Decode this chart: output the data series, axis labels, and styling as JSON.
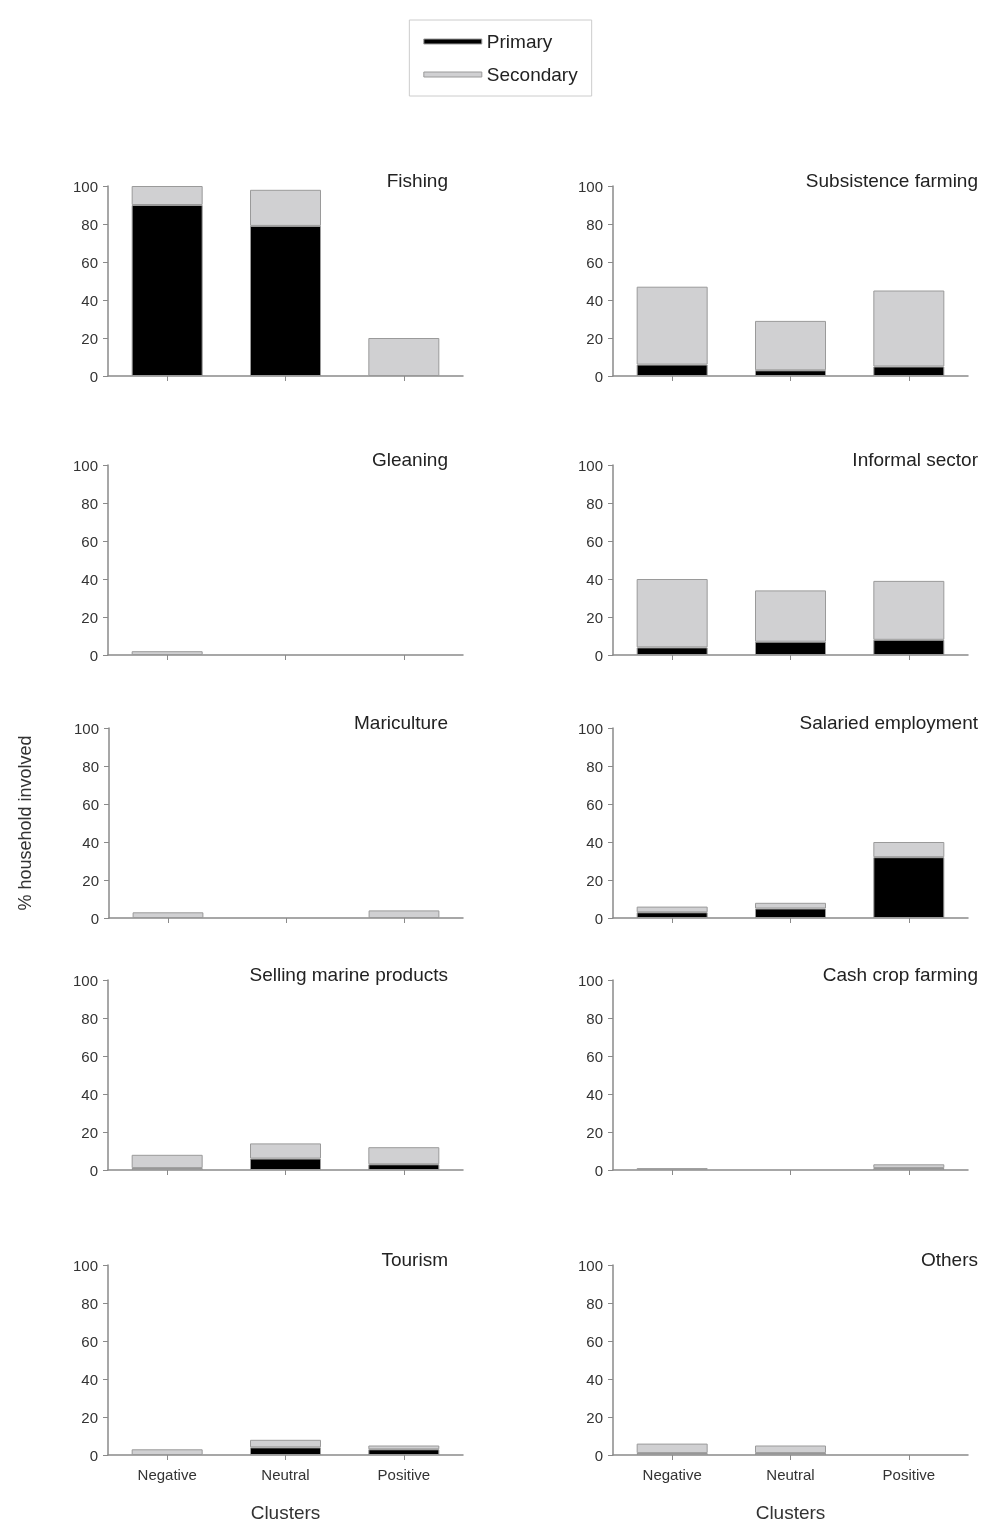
{
  "chart_data": [
    {
      "type": "bar",
      "title": "Fishing",
      "categories": [
        null,
        null,
        null
      ],
      "stacked": true,
      "legend": "top",
      "grid": false,
      "tick_labels": "y",
      "ylim": [
        0,
        100
      ],
      "yticks": [
        0,
        20,
        40,
        60,
        80,
        100
      ],
      "series": [
        {
          "name": "Primary",
          "color": "#000000",
          "values": [
            90,
            79,
            0
          ]
        },
        {
          "name": "Secondary",
          "color": "#d0d0d2",
          "values": [
            10,
            19,
            20
          ]
        }
      ]
    },
    {
      "type": "bar",
      "title": "Subsistence farming",
      "categories": [
        null,
        null,
        null
      ],
      "stacked": true,
      "grid": false,
      "tick_labels": "y",
      "ylim": [
        0,
        100
      ],
      "yticks": [
        0,
        20,
        40,
        60,
        80,
        100
      ],
      "series": [
        {
          "color": "#000000",
          "values": [
            6,
            3,
            5
          ]
        },
        {
          "color": "#d0d0d2",
          "values": [
            41,
            26,
            40
          ]
        }
      ]
    },
    {
      "type": "bar",
      "title": "Gleaning",
      "categories": [
        null,
        null,
        null
      ],
      "stacked": true,
      "grid": false,
      "tick_labels": "y",
      "ylim": [
        0,
        100
      ],
      "yticks": [
        0,
        20,
        40,
        60,
        80,
        100
      ],
      "series": [
        {
          "color": "#000000",
          "values": [
            0,
            0,
            0
          ]
        },
        {
          "color": "#d0d0d2",
          "values": [
            2,
            0,
            0
          ]
        }
      ]
    },
    {
      "type": "bar",
      "title": "Informal sector",
      "categories": [
        null,
        null,
        null
      ],
      "stacked": true,
      "grid": false,
      "tick_labels": "y",
      "ylim": [
        0,
        100
      ],
      "yticks": [
        0,
        20,
        40,
        60,
        80,
        100
      ],
      "series": [
        {
          "color": "#000000",
          "values": [
            4,
            7,
            8
          ]
        },
        {
          "color": "#d0d0d2",
          "values": [
            36,
            27,
            31
          ]
        }
      ]
    },
    {
      "type": "bar",
      "title": "Mariculture",
      "ylabel": "% household involved",
      "categories": [
        null,
        null,
        null
      ],
      "stacked": true,
      "grid": false,
      "tick_labels": "y",
      "ylim": [
        0,
        100
      ],
      "yticks": [
        0,
        20,
        40,
        60,
        80,
        100
      ],
      "series": [
        {
          "color": "#000000",
          "values": [
            0,
            0,
            0
          ]
        },
        {
          "color": "#d0d0d2",
          "values": [
            3,
            0,
            4
          ]
        }
      ]
    },
    {
      "type": "bar",
      "title": "Salaried employment",
      "categories": [
        null,
        null,
        null
      ],
      "stacked": true,
      "grid": false,
      "tick_labels": "y",
      "ylim": [
        0,
        100
      ],
      "yticks": [
        0,
        20,
        40,
        60,
        80,
        100
      ],
      "series": [
        {
          "color": "#000000",
          "values": [
            3,
            5,
            32
          ]
        },
        {
          "color": "#d0d0d2",
          "values": [
            3,
            3,
            8
          ]
        }
      ]
    },
    {
      "type": "bar",
      "title": "Selling marine products",
      "categories": [
        null,
        null,
        null
      ],
      "stacked": true,
      "grid": false,
      "tick_labels": "y",
      "ylim": [
        0,
        100
      ],
      "yticks": [
        0,
        20,
        40,
        60,
        80,
        100
      ],
      "series": [
        {
          "color": "#000000",
          "values": [
            1,
            6,
            3
          ]
        },
        {
          "color": "#d0d0d2",
          "values": [
            7,
            8,
            9
          ]
        }
      ]
    },
    {
      "type": "bar",
      "title": "Cash crop farming",
      "categories": [
        null,
        null,
        null
      ],
      "stacked": true,
      "grid": false,
      "tick_labels": "y",
      "ylim": [
        0,
        100
      ],
      "yticks": [
        0,
        20,
        40,
        60,
        80,
        100
      ],
      "series": [
        {
          "color": "#000000",
          "values": [
            0,
            0,
            1
          ]
        },
        {
          "color": "#d0d0d2",
          "values": [
            1,
            0,
            2
          ]
        }
      ]
    },
    {
      "type": "bar",
      "title": "Tourism",
      "xlabel": "Clusters",
      "categories": [
        "Negative",
        "Neutral",
        "Positive"
      ],
      "stacked": true,
      "grid": false,
      "ylim": [
        0,
        100
      ],
      "yticks": [
        0,
        20,
        40,
        60,
        80,
        100
      ],
      "series": [
        {
          "color": "#000000",
          "values": [
            0,
            4,
            3
          ]
        },
        {
          "color": "#d0d0d2",
          "values": [
            3,
            4,
            2
          ]
        }
      ]
    },
    {
      "type": "bar",
      "title": "Others",
      "xlabel": "Clusters",
      "categories": [
        "Negative",
        "Neutral",
        "Positive"
      ],
      "stacked": true,
      "grid": false,
      "ylim": [
        0,
        100
      ],
      "yticks": [
        0,
        20,
        40,
        60,
        80,
        100
      ],
      "series": [
        {
          "color": "#000000",
          "values": [
            1,
            1,
            0
          ]
        },
        {
          "color": "#d0d0d2",
          "values": [
            5,
            4,
            0
          ]
        }
      ]
    }
  ]
}
